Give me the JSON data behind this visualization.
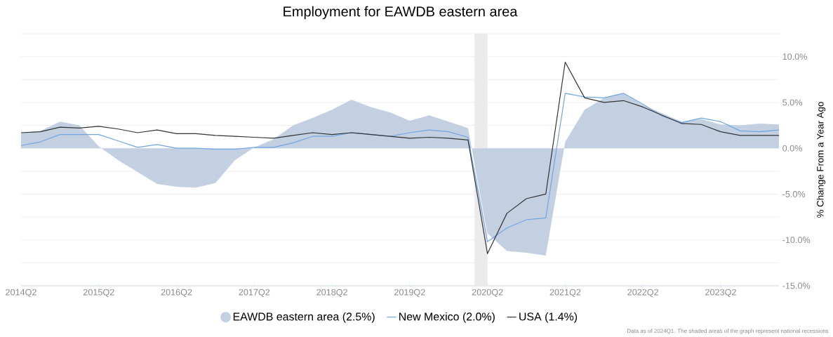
{
  "chart_data": {
    "type": "line",
    "title": "Employment for EAWDB eastern area",
    "ylabel": "% Change From a Year Ago",
    "x": [
      "2014-04",
      "2014-07",
      "2014-10",
      "2015-01",
      "2015-04",
      "2015-07",
      "2015-10",
      "2016-01",
      "2016-04",
      "2016-07",
      "2016-10",
      "2017-01",
      "2017-04",
      "2017-07",
      "2017-10",
      "2018-01",
      "2018-04",
      "2018-07",
      "2018-10",
      "2019-01",
      "2019-04",
      "2019-07",
      "2019-10",
      "2020-01",
      "2020-04",
      "2020-07",
      "2020-10",
      "2021-01",
      "2021-04",
      "2021-07",
      "2021-10",
      "2022-01",
      "2022-04",
      "2022-07",
      "2022-10",
      "2023-01",
      "2023-04",
      "2023-07",
      "2023-10",
      "2024-01"
    ],
    "xlim": [
      "2014-04",
      "2024-01"
    ],
    "xticks": [
      {
        "value": "2014-04",
        "label": "2014Q2"
      },
      {
        "value": "2015-04",
        "label": "2015Q2"
      },
      {
        "value": "2016-04",
        "label": "2016Q2"
      },
      {
        "value": "2017-04",
        "label": "2017Q2"
      },
      {
        "value": "2018-04",
        "label": "2018Q2"
      },
      {
        "value": "2019-04",
        "label": "2019Q2"
      },
      {
        "value": "2020-04",
        "label": "2020Q2"
      },
      {
        "value": "2021-04",
        "label": "2021Q2"
      },
      {
        "value": "2022-04",
        "label": "2022Q2"
      },
      {
        "value": "2023-04",
        "label": "2023Q2"
      }
    ],
    "ylim": [
      -15,
      12.5
    ],
    "yticks": [
      {
        "value": -15,
        "label": "-15.0%"
      },
      {
        "value": -12.5,
        "label": null
      },
      {
        "value": -10,
        "label": "-10.0%"
      },
      {
        "value": -7.5,
        "label": null
      },
      {
        "value": -5,
        "label": "-5.0%"
      },
      {
        "value": -2.5,
        "label": null
      },
      {
        "value": 0,
        "label": "0.0%"
      },
      {
        "value": 2.5,
        "label": null
      },
      {
        "value": 5,
        "label": "5.0%"
      },
      {
        "value": 7.5,
        "label": null
      },
      {
        "value": 10,
        "label": "10.0%"
      },
      {
        "value": 12.5,
        "label": null
      }
    ],
    "grid": "y",
    "legend": "bottom",
    "bands": [
      {
        "axis": "x",
        "from": "2020-02",
        "to": "2020-04",
        "color": "#ebebeb"
      }
    ],
    "series": [
      {
        "name": "EAWDB eastern area (2.5%)",
        "type": "area",
        "color": "#c3d0e2",
        "values": [
          1.7,
          1.9,
          2.9,
          2.5,
          0.2,
          -1.3,
          -2.6,
          -3.9,
          -4.2,
          -4.3,
          -3.8,
          -1.3,
          0.1,
          1.0,
          2.5,
          3.3,
          4.2,
          5.3,
          4.5,
          3.9,
          3.0,
          3.6,
          2.9,
          2.2,
          -9.3,
          -11.2,
          -11.4,
          -11.7,
          0.7,
          4.2,
          5.5,
          6.0,
          4.7,
          3.8,
          2.9,
          3.2,
          2.6,
          2.5,
          2.7,
          2.6
        ]
      },
      {
        "name": "New Mexico (2.0%)",
        "color": "#6fa6e3",
        "values": [
          0.3,
          0.7,
          1.5,
          1.5,
          1.5,
          0.8,
          0.1,
          0.4,
          0.0,
          0.0,
          -0.1,
          -0.1,
          0.1,
          0.1,
          0.6,
          1.3,
          1.3,
          1.7,
          1.5,
          1.3,
          1.7,
          2.0,
          1.8,
          1.2,
          -10.2,
          -8.7,
          -7.8,
          -7.6,
          6.0,
          5.6,
          5.5,
          6.0,
          4.8,
          3.5,
          2.8,
          3.3,
          2.9,
          1.9,
          1.8,
          2.0
        ]
      },
      {
        "name": "USA (1.4%)",
        "color": "#333333",
        "values": [
          1.7,
          1.8,
          2.3,
          2.2,
          2.4,
          2.1,
          1.7,
          2.0,
          1.6,
          1.6,
          1.4,
          1.3,
          1.2,
          1.1,
          1.4,
          1.7,
          1.5,
          1.7,
          1.5,
          1.3,
          1.1,
          1.2,
          1.1,
          0.9,
          -11.5,
          -7.1,
          -5.5,
          -5.0,
          9.4,
          5.5,
          5.0,
          5.2,
          4.5,
          3.6,
          2.7,
          2.6,
          1.8,
          1.4,
          1.4,
          1.4
        ]
      }
    ],
    "annotations": [
      "Data as of 2024Q1. The shaded areas of the graph represent national recessions"
    ]
  }
}
